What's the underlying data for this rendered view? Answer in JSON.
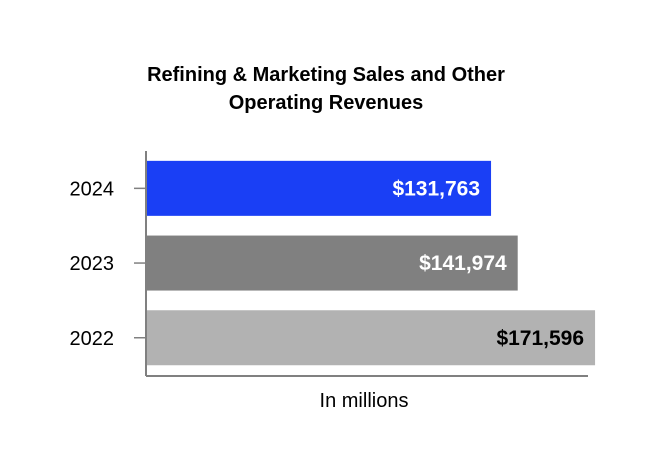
{
  "chart_data": {
    "type": "bar",
    "orientation": "horizontal",
    "title_lines": [
      "Refining & Marketing Sales and Other",
      "Operating Revenues"
    ],
    "xlabel": "In millions",
    "ylabel": "",
    "xlim": [
      0,
      180000
    ],
    "grid": false,
    "legend": "none",
    "categories": [
      "2024",
      "2023",
      "2022"
    ],
    "values": [
      131763,
      141974,
      171596
    ],
    "value_labels": [
      "$131,763",
      "$141,974",
      "$171,596"
    ],
    "colors": [
      "#1a3ff5",
      "#808080",
      "#b2b2b2"
    ],
    "label_colors": [
      "#ffffff",
      "#ffffff",
      "#000000"
    ],
    "axis_color": "#808080"
  }
}
